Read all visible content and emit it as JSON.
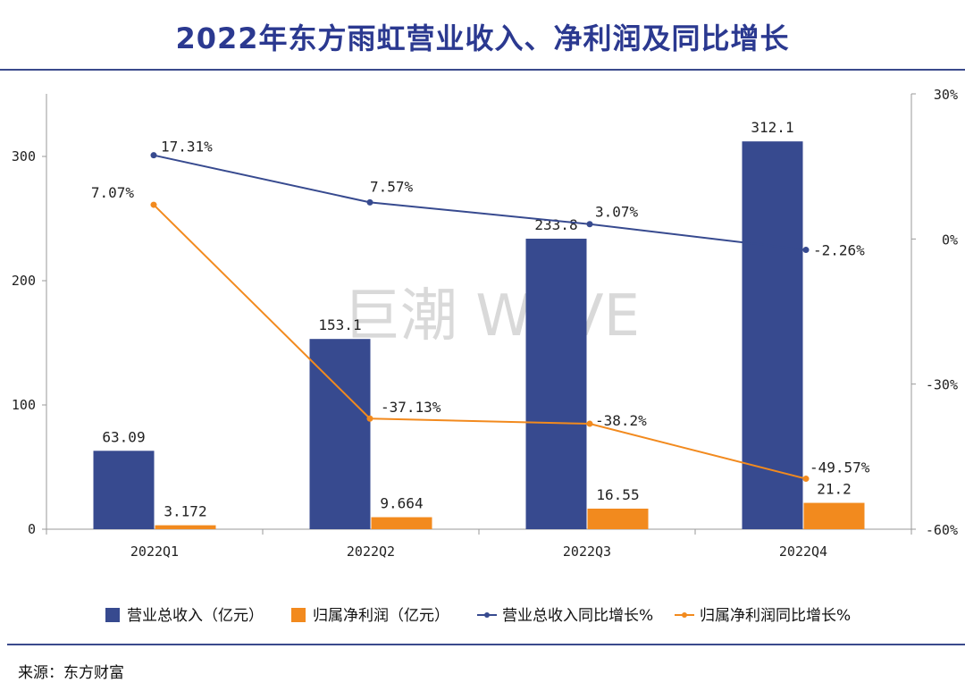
{
  "title": "2022年东方雨虹营业收入、净利润及同比增长",
  "source": "来源：东方财富",
  "watermark": "巨潮 WAVE",
  "chart_data": {
    "type": "bar",
    "categories": [
      "2022Q1",
      "2022Q2",
      "2022Q3",
      "2022Q4"
    ],
    "y_left": {
      "ticks": [
        0,
        100,
        200,
        300
      ],
      "ylim": [
        0,
        350
      ]
    },
    "y_right": {
      "ticks": [
        "30%",
        "0%",
        "-30%",
        "-60%"
      ],
      "ylim": [
        -60,
        30
      ]
    },
    "series": [
      {
        "name": "营业总收入（亿元）",
        "kind": "bar",
        "axis": "left",
        "color": "#374a8f",
        "values": [
          63.09,
          153.1,
          233.8,
          312.1
        ],
        "labels": [
          "63.09",
          "153.1",
          "233.8",
          "312.1"
        ]
      },
      {
        "name": "归属净利润（亿元）",
        "kind": "bar",
        "axis": "left",
        "color": "#f28a1e",
        "values": [
          3.172,
          9.664,
          16.55,
          21.2
        ],
        "labels": [
          "3.172",
          "9.664",
          "16.55",
          "21.2"
        ]
      },
      {
        "name": "营业总收入同比增长%",
        "kind": "line",
        "axis": "right",
        "color": "#374a8f",
        "values": [
          17.31,
          7.57,
          3.07,
          -2.26
        ],
        "labels": [
          "17.31%",
          "7.57%",
          "3.07%",
          "-2.26%"
        ]
      },
      {
        "name": "归属净利润同比增长%",
        "kind": "line",
        "axis": "right",
        "color": "#f28a1e",
        "values": [
          7.07,
          -37.13,
          -38.2,
          -49.57
        ],
        "labels": [
          "7.07%",
          "-37.13%",
          "-38.2%",
          "-49.57%"
        ]
      }
    ],
    "legend": "bottom"
  }
}
